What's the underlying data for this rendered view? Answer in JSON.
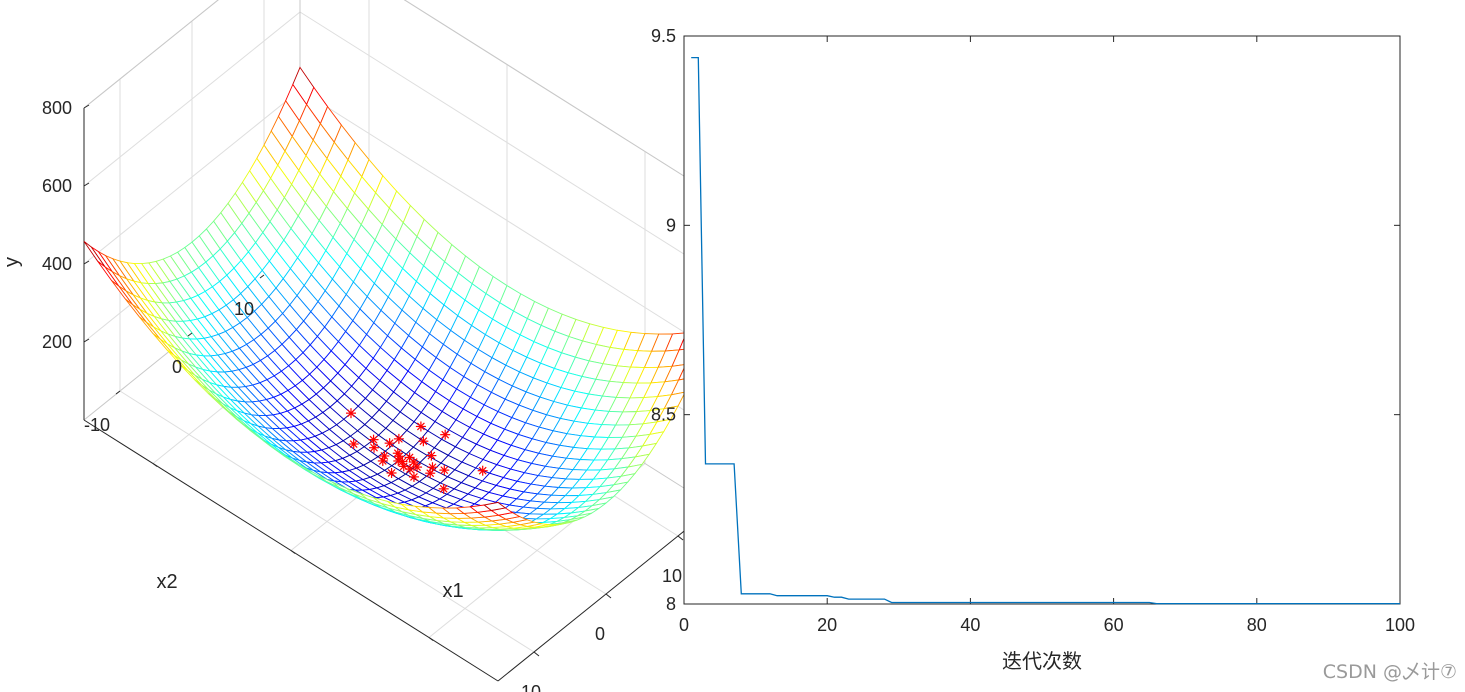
{
  "chart_data": [
    {
      "type": "surface3d",
      "title": "",
      "xlabel": "x1",
      "ylabel": "x2",
      "zlabel": "y",
      "x_range": [
        -15,
        15
      ],
      "y_range": [
        -15,
        15
      ],
      "z_range": [
        0,
        800
      ],
      "x_ticks": [
        -10,
        0,
        10
      ],
      "y_ticks": [
        -10,
        0,
        10
      ],
      "z_ticks": [
        200,
        400,
        600,
        800
      ],
      "surface": "mesh, jet-like colormap",
      "grid": true,
      "points": {
        "marker": "*",
        "color": "#ff0000",
        "values": [
          [
            0.2,
            0.1,
            8.1
          ],
          [
            0.5,
            -0.3,
            8.3
          ],
          [
            -0.4,
            0.6,
            8.5
          ],
          [
            1.1,
            0.4,
            9.4
          ],
          [
            -0.8,
            -0.5,
            8.9
          ],
          [
            0.3,
            0.9,
            8.9
          ],
          [
            1.5,
            -0.8,
            11.0
          ],
          [
            -1.2,
            1.0,
            10.5
          ],
          [
            0.0,
            -0.1,
            8.0
          ],
          [
            0.7,
            0.7,
            9.0
          ],
          [
            -0.6,
            -1.1,
            9.6
          ],
          [
            2.0,
            0.5,
            12.3
          ],
          [
            -2.0,
            0.3,
            12.1
          ],
          [
            0.4,
            -1.8,
            11.4
          ],
          [
            1.8,
            1.2,
            12.7
          ],
          [
            -1.0,
            1.9,
            12.6
          ],
          [
            0.9,
            -0.2,
            8.9
          ],
          [
            -0.2,
            0.4,
            8.2
          ],
          [
            2.5,
            1.5,
            16.5
          ],
          [
            3.5,
            -0.5,
            20.5
          ],
          [
            0.2,
            3.0,
            17.0
          ],
          [
            -0.5,
            4.0,
            24.3
          ],
          [
            1.0,
            4.5,
            29.3
          ],
          [
            -4.0,
            1.0,
            25.0
          ],
          [
            4.5,
            3.0,
            37.3
          ],
          [
            -2.5,
            -1.5,
            16.5
          ],
          [
            1.2,
            2.2,
            14.3
          ],
          [
            -1.6,
            -0.4,
            10.7
          ]
        ]
      }
    },
    {
      "type": "line",
      "title": "",
      "xlabel": "迭代次数",
      "ylabel": "",
      "xlim": [
        0,
        100
      ],
      "ylim": [
        8,
        9.5
      ],
      "x_ticks": [
        0,
        20,
        40,
        60,
        80,
        100
      ],
      "y_ticks": [
        8,
        8.5,
        9,
        9.5
      ],
      "grid": false,
      "series": [
        {
          "color": "#0072bd",
          "x": [
            1,
            2,
            3,
            7,
            8,
            12,
            13,
            20,
            21,
            22,
            23,
            28,
            29,
            65,
            66,
            100
          ],
          "values": [
            9.443,
            9.443,
            8.37,
            8.37,
            8.027,
            8.027,
            8.022,
            8.022,
            8.018,
            8.018,
            8.013,
            8.013,
            8.004,
            8.004,
            8.001,
            8.001
          ]
        }
      ]
    }
  ],
  "watermark": "CSDN @乄计⑦"
}
